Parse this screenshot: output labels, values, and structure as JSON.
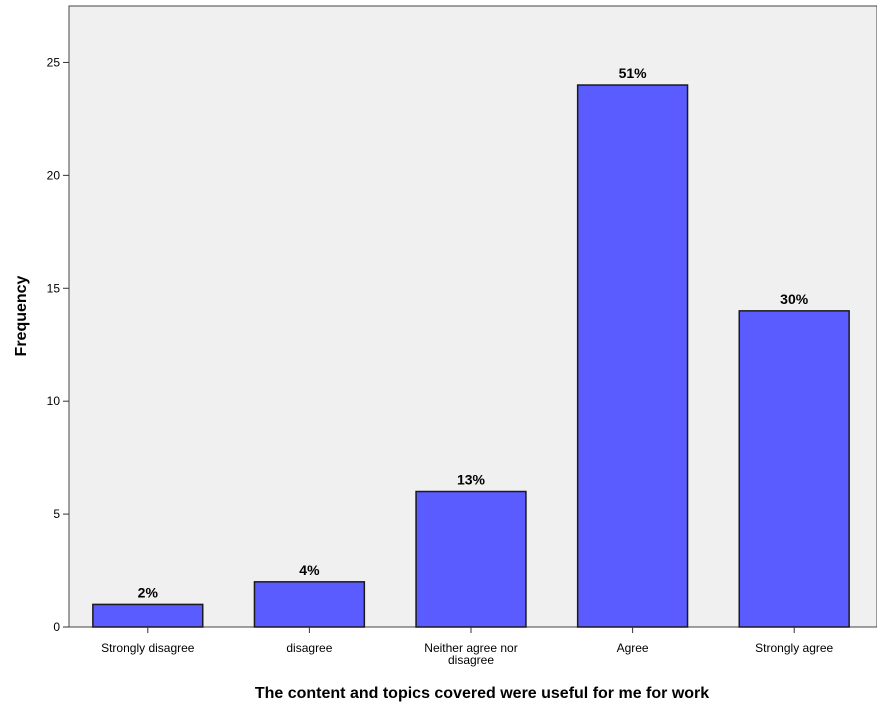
{
  "chart_data": {
    "type": "bar",
    "categories": [
      "Strongly disagree",
      "disagree",
      "Neither agree nor disagree",
      "Agree",
      "Strongly agree"
    ],
    "category_lines": [
      [
        "Strongly disagree"
      ],
      [
        "disagree"
      ],
      [
        "Neither agree nor",
        "disagree"
      ],
      [
        "Agree"
      ],
      [
        "Strongly agree"
      ]
    ],
    "values": [
      1,
      2,
      6,
      24,
      14
    ],
    "data_labels": [
      "2%",
      "4%",
      "13%",
      "51%",
      "30%"
    ],
    "xlabel": "The content and topics covered were useful for me for work",
    "ylabel": "Frequency",
    "ylim": [
      0,
      27.5
    ],
    "yticks": [
      0,
      5,
      10,
      15,
      20,
      25
    ],
    "grid": false,
    "colors": {
      "bar_fill": "#5a5cff",
      "bar_stroke": "#1a1a1a",
      "plot_bg": "#f0f0f0"
    }
  }
}
